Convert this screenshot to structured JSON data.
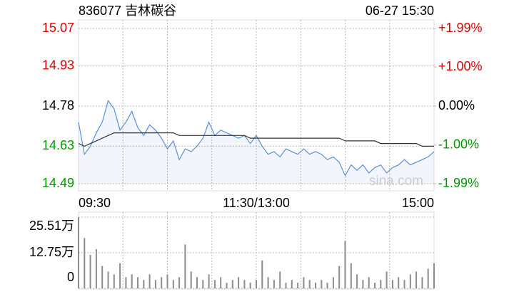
{
  "title": "836077 吉林碳谷",
  "timestamp": "06-27 15:30",
  "watermark": "sina.com",
  "chart_data": [
    {
      "type": "line",
      "categories": [
        "09:30",
        null,
        null,
        null,
        null,
        null,
        null,
        null,
        null,
        null,
        null,
        null,
        null,
        null,
        null,
        null,
        null,
        null,
        null,
        null,
        null,
        null,
        null,
        null,
        null,
        null,
        null,
        null,
        null,
        null,
        "11:30/13:00",
        null,
        null,
        null,
        null,
        null,
        null,
        null,
        null,
        null,
        null,
        null,
        null,
        null,
        null,
        null,
        null,
        null,
        null,
        null,
        null,
        null,
        null,
        null,
        null,
        null,
        null,
        null,
        null,
        null,
        "15:00"
      ],
      "series": [
        {
          "color": "#5b8fdc",
          "values": [
            14.72,
            14.6,
            14.63,
            14.68,
            14.72,
            14.8,
            14.77,
            14.69,
            14.72,
            14.76,
            14.7,
            14.67,
            14.71,
            14.69,
            14.66,
            14.62,
            14.65,
            14.58,
            14.62,
            14.61,
            14.63,
            14.66,
            14.72,
            14.67,
            14.69,
            14.68,
            14.67,
            14.66,
            14.67,
            14.64,
            14.67,
            14.63,
            14.6,
            14.61,
            14.59,
            14.62,
            14.61,
            14.6,
            14.62,
            14.6,
            14.61,
            14.6,
            14.58,
            14.59,
            14.57,
            14.52,
            14.56,
            14.54,
            14.56,
            14.53,
            14.55,
            14.56,
            14.53,
            14.55,
            14.56,
            14.58,
            14.56,
            14.57,
            14.58,
            14.59,
            14.61
          ]
        },
        {
          "color": "#333333",
          "values": [
            14.64,
            14.63,
            14.64,
            14.65,
            14.66,
            14.67,
            14.68,
            14.68,
            14.68,
            14.68,
            14.68,
            14.68,
            14.68,
            14.68,
            14.68,
            14.68,
            14.68,
            14.67,
            14.67,
            14.67,
            14.67,
            14.67,
            14.67,
            14.67,
            14.67,
            14.67,
            14.67,
            14.67,
            14.67,
            14.66,
            14.66,
            14.66,
            14.66,
            14.66,
            14.66,
            14.66,
            14.66,
            14.66,
            14.66,
            14.66,
            14.66,
            14.66,
            14.66,
            14.66,
            14.66,
            14.65,
            14.65,
            14.65,
            14.65,
            14.65,
            14.65,
            14.64,
            14.64,
            14.64,
            14.64,
            14.64,
            14.64,
            14.64,
            14.63,
            14.63,
            14.63
          ]
        }
      ],
      "ylim": [
        14.49,
        15.07
      ],
      "yticks": [
        15.07,
        14.93,
        14.78,
        14.63,
        14.49
      ],
      "y2lim": [
        -1.99,
        1.99
      ],
      "y2ticks": [
        {
          "value": 1.99,
          "label": "+1.99%"
        },
        {
          "value": 1.0,
          "label": "+1.00%"
        },
        {
          "value": 0,
          "label": "0.00%"
        },
        {
          "value": -1.0,
          "label": "-1.00%"
        },
        {
          "value": -1.99,
          "label": "-1.99%"
        }
      ],
      "up_color": "#e00000",
      "down_color": "#009a00",
      "flat_color": "#000000",
      "grid": true
    },
    {
      "type": "bar",
      "values": [
        25.5,
        18,
        12,
        14,
        8,
        6,
        5,
        9,
        4,
        5,
        4,
        3,
        5,
        3,
        4,
        5,
        3,
        4,
        15.7,
        6,
        4,
        3,
        5,
        3,
        4,
        2,
        3,
        4,
        3,
        2,
        3,
        10,
        4,
        3,
        6,
        2,
        3,
        2,
        4,
        3,
        2,
        3,
        2,
        4,
        8,
        17,
        9,
        5,
        3,
        4,
        2,
        3,
        6,
        3,
        4,
        3,
        5,
        6,
        4,
        7,
        9
      ],
      "color": "#8c8c8c",
      "ylim": [
        0,
        25.51
      ],
      "yticks": [
        {
          "value": 25.51,
          "label": "25.51万"
        },
        {
          "value": 12.75,
          "label": "12.75万"
        },
        0
      ],
      "grid": true
    }
  ]
}
